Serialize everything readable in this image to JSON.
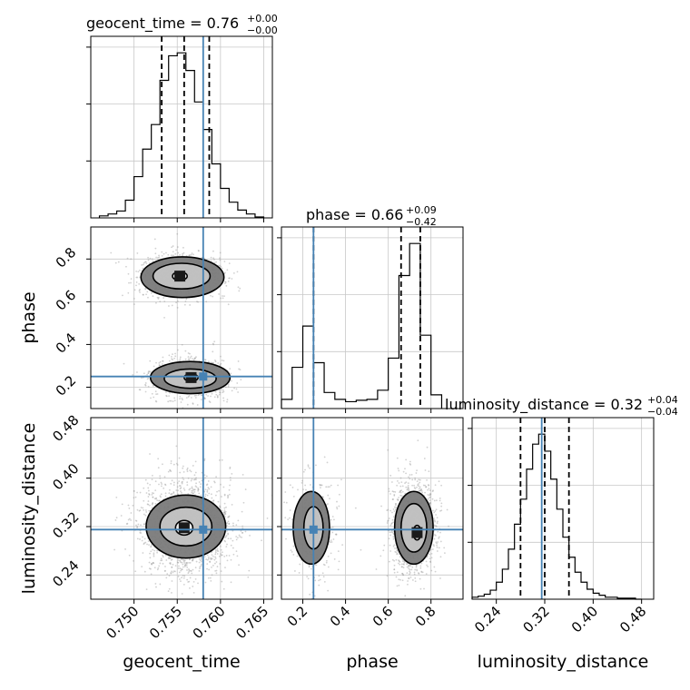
{
  "chart_data": {
    "type": "corner",
    "colors": {
      "truth": "#4682b4",
      "hist": "#000000",
      "grid": "#c8c8c8",
      "scatter": "#9a9a9a"
    },
    "parameters": [
      {
        "name": "geocent_time",
        "label": "geocent_time",
        "range": [
          0.745,
          0.766
        ],
        "ticks": [
          0.75,
          0.755,
          0.76,
          0.765
        ],
        "tick_labels": [
          "0.750",
          "0.755",
          "0.760",
          "0.765"
        ],
        "truth": 0.758,
        "title": {
          "text": "geocent_time = 0.76",
          "sup": "+0.00",
          "sub": "−0.00"
        },
        "quantiles": [
          0.7532,
          0.7558,
          0.7587
        ],
        "hist_edges": [
          0.746,
          0.747,
          0.748,
          0.749,
          0.75,
          0.751,
          0.752,
          0.753,
          0.754,
          0.755,
          0.756,
          0.757,
          0.758,
          0.759,
          0.76,
          0.761,
          0.762,
          0.763,
          0.764,
          0.765
        ],
        "hist_counts": [
          2,
          4,
          7,
          18,
          42,
          70,
          95,
          140,
          165,
          168,
          150,
          118,
          90,
          55,
          30,
          16,
          8,
          4,
          1
        ]
      },
      {
        "name": "phase",
        "label": "phase",
        "range": [
          0.1,
          0.95
        ],
        "ticks": [
          0.2,
          0.4,
          0.6,
          0.8
        ],
        "tick_labels": [
          "0.2",
          "0.4",
          "0.6",
          "0.8"
        ],
        "truth": 0.25,
        "title": {
          "text": "phase = 0.66",
          "sup": "+0.09",
          "sub": "−0.42"
        },
        "quantiles": [
          0.25,
          0.66,
          0.75
        ],
        "hist_edges": [
          0.1,
          0.15,
          0.2,
          0.25,
          0.3,
          0.35,
          0.4,
          0.45,
          0.5,
          0.55,
          0.6,
          0.65,
          0.7,
          0.75,
          0.8,
          0.85
        ],
        "hist_counts": [
          20,
          90,
          180,
          100,
          35,
          20,
          15,
          18,
          20,
          40,
          110,
          290,
          360,
          160,
          30
        ]
      },
      {
        "name": "luminosity_distance",
        "label": "luminosity_distance",
        "range": [
          0.2,
          0.5
        ],
        "ticks": [
          0.24,
          0.32,
          0.4,
          0.48
        ],
        "tick_labels": [
          "0.24",
          "0.32",
          "0.40",
          "0.48"
        ],
        "truth": 0.315,
        "title": {
          "text": "luminosity_distance = 0.32",
          "sup": "+0.04",
          "sub": "−0.04"
        },
        "quantiles": [
          0.28,
          0.32,
          0.36
        ],
        "hist_edges": [
          0.2,
          0.21,
          0.22,
          0.23,
          0.24,
          0.25,
          0.26,
          0.27,
          0.28,
          0.29,
          0.3,
          0.31,
          0.32,
          0.33,
          0.34,
          0.35,
          0.36,
          0.37,
          0.38,
          0.39,
          0.4,
          0.41,
          0.42,
          0.43,
          0.44,
          0.45,
          0.46,
          0.47,
          0.48
        ],
        "hist_counts": [
          2,
          3,
          5,
          9,
          17,
          30,
          50,
          75,
          100,
          130,
          155,
          165,
          148,
          120,
          90,
          62,
          42,
          27,
          17,
          10,
          6,
          4,
          2,
          2,
          1,
          1,
          1,
          0
        ]
      }
    ],
    "pairs": [
      {
        "x": "geocent_time",
        "y": "phase",
        "modes": [
          {
            "cx": 0.7555,
            "cy": 0.72,
            "sx": 0.0021,
            "sy": 0.045,
            "w": 1.0
          },
          {
            "cx": 0.7565,
            "cy": 0.245,
            "sx": 0.002,
            "sy": 0.045,
            "w": 0.75
          }
        ],
        "contour_levels": [
          [
            {
              "cx": 0.7553,
              "cy": 0.72,
              "rx": 0.00085,
              "ry": 0.02
            },
            {
              "cx": 0.7566,
              "cy": 0.245,
              "rx": 0.0008,
              "ry": 0.018
            }
          ],
          [
            {
              "cx": 0.7555,
              "cy": 0.72,
              "rx": 0.0033,
              "ry": 0.06
            },
            {
              "cx": 0.7565,
              "cy": 0.24,
              "rx": 0.003,
              "ry": 0.045
            }
          ],
          [
            {
              "cx": 0.7556,
              "cy": 0.715,
              "rx": 0.0048,
              "ry": 0.095
            },
            {
              "cx": 0.7565,
              "cy": 0.245,
              "rx": 0.0046,
              "ry": 0.075
            }
          ]
        ]
      },
      {
        "x": "geocent_time",
        "y": "luminosity_distance",
        "modes": [
          {
            "cx": 0.756,
            "cy": 0.32,
            "sx": 0.0023,
            "sy": 0.035,
            "w": 1.0
          }
        ],
        "contour_levels": [
          [
            {
              "cx": 0.7558,
              "cy": 0.318,
              "rx": 0.001,
              "ry": 0.012
            }
          ],
          [
            {
              "cx": 0.756,
              "cy": 0.32,
              "rx": 0.003,
              "ry": 0.032
            }
          ],
          [
            {
              "cx": 0.756,
              "cy": 0.32,
              "rx": 0.0046,
              "ry": 0.052
            }
          ]
        ]
      },
      {
        "x": "phase",
        "y": "luminosity_distance",
        "modes": [
          {
            "cx": 0.72,
            "cy": 0.318,
            "sx": 0.045,
            "sy": 0.035,
            "w": 1.0
          },
          {
            "cx": 0.25,
            "cy": 0.318,
            "sx": 0.045,
            "sy": 0.035,
            "w": 0.35
          }
        ],
        "contour_levels": [
          [
            {
              "cx": 0.735,
              "cy": 0.31,
              "rx": 0.018,
              "ry": 0.012
            }
          ],
          [
            {
              "cx": 0.72,
              "cy": 0.318,
              "rx": 0.06,
              "ry": 0.04
            },
            {
              "cx": 0.25,
              "cy": 0.318,
              "rx": 0.045,
              "ry": 0.035
            }
          ],
          [
            {
              "cx": 0.72,
              "cy": 0.318,
              "rx": 0.09,
              "ry": 0.06
            },
            {
              "cx": 0.24,
              "cy": 0.318,
              "rx": 0.085,
              "ry": 0.06
            }
          ]
        ]
      }
    ]
  }
}
